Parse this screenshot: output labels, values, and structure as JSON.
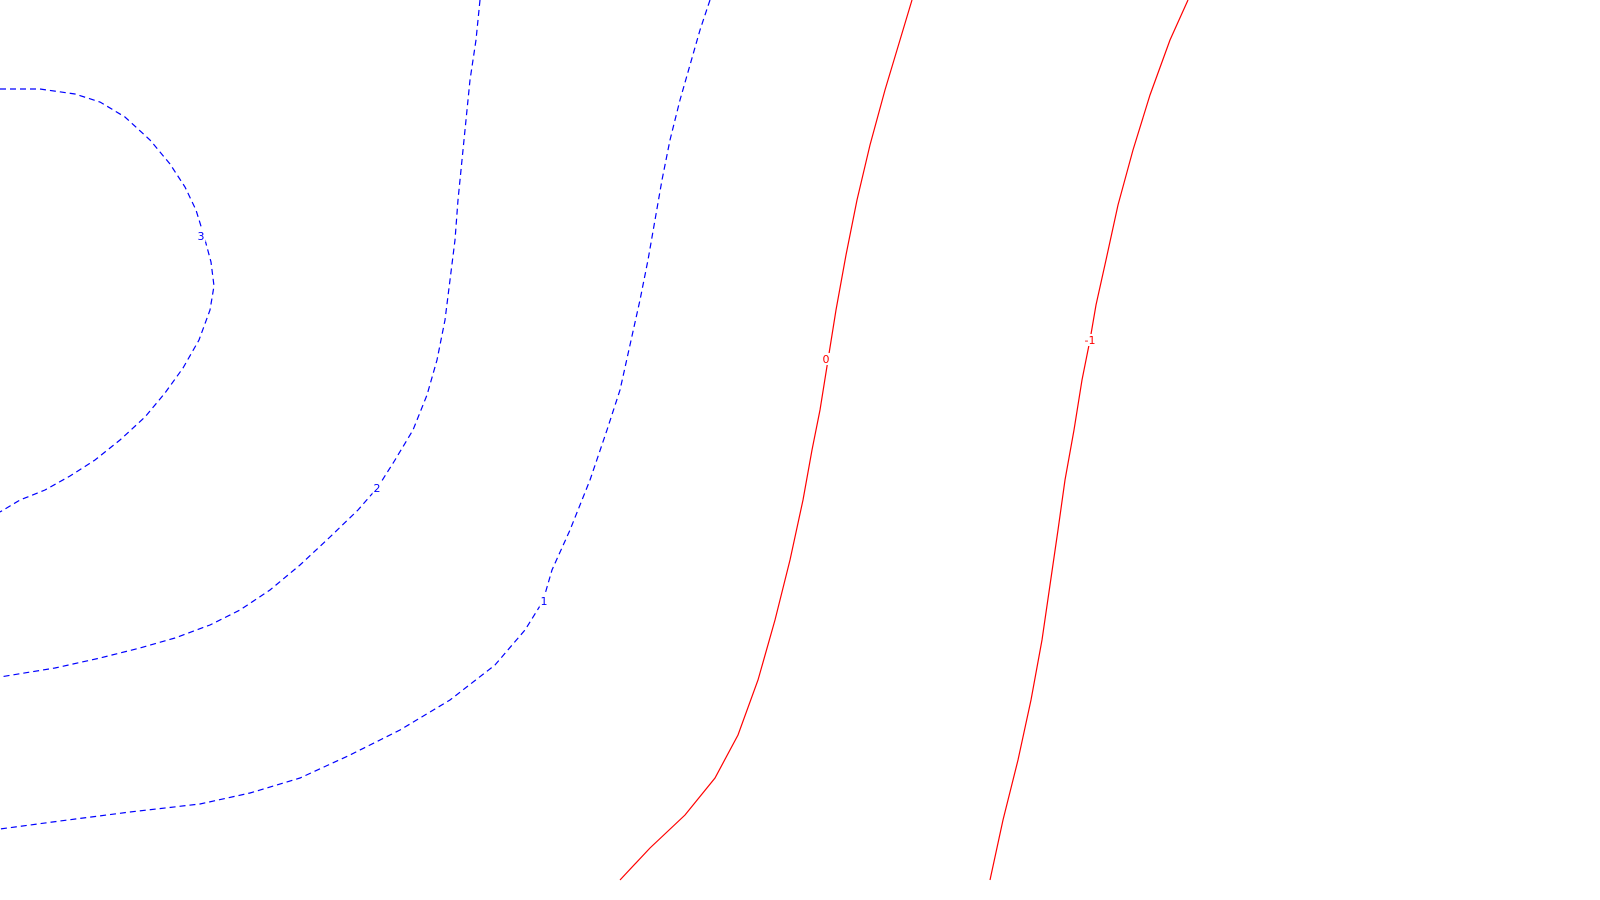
{
  "chart_data": {
    "type": "contour",
    "title": "",
    "xlabel": "",
    "ylabel": "",
    "grid": false,
    "colors": {
      "positive": "#0000ff",
      "zero": "#ff0000",
      "negative": "#ff0000",
      "background": "#ffffff"
    },
    "contours": [
      {
        "level": 3,
        "label": "3",
        "style": "dashed",
        "points": [
          [
            0,
            89
          ],
          [
            40,
            89
          ],
          [
            75,
            94
          ],
          [
            100,
            102
          ],
          [
            125,
            117
          ],
          [
            150,
            140
          ],
          [
            170,
            164
          ],
          [
            185,
            187
          ],
          [
            196,
            210
          ],
          [
            204,
            236
          ],
          [
            211,
            262
          ],
          [
            214,
            286
          ],
          [
            210,
            310
          ],
          [
            199,
            340
          ],
          [
            183,
            368
          ],
          [
            165,
            393
          ],
          [
            145,
            417
          ],
          [
            120,
            440
          ],
          [
            95,
            460
          ],
          [
            70,
            476
          ],
          [
            45,
            490
          ],
          [
            20,
            500
          ],
          [
            0,
            512
          ]
        ],
        "label_at": [
          201,
          236
        ]
      },
      {
        "level": 2,
        "label": "2",
        "style": "dashed",
        "points": [
          [
            480,
            0
          ],
          [
            476,
            40
          ],
          [
            470,
            80
          ],
          [
            466,
            120
          ],
          [
            462,
            160
          ],
          [
            458,
            200
          ],
          [
            455,
            240
          ],
          [
            450,
            280
          ],
          [
            445,
            320
          ],
          [
            437,
            360
          ],
          [
            427,
            395
          ],
          [
            413,
            430
          ],
          [
            395,
            460
          ],
          [
            378,
            487
          ],
          [
            358,
            510
          ],
          [
            330,
            537
          ],
          [
            300,
            565
          ],
          [
            270,
            590
          ],
          [
            240,
            610
          ],
          [
            210,
            625
          ],
          [
            175,
            638
          ],
          [
            140,
            648
          ],
          [
            100,
            658
          ],
          [
            55,
            668
          ],
          [
            0,
            677
          ]
        ],
        "label_at": [
          377,
          488
        ]
      },
      {
        "level": 1,
        "label": "1",
        "style": "dashed",
        "points": [
          [
            710,
            0
          ],
          [
            700,
            30
          ],
          [
            690,
            65
          ],
          [
            680,
            100
          ],
          [
            670,
            140
          ],
          [
            662,
            180
          ],
          [
            655,
            220
          ],
          [
            648,
            260
          ],
          [
            640,
            300
          ],
          [
            630,
            345
          ],
          [
            620,
            390
          ],
          [
            607,
            430
          ],
          [
            590,
            480
          ],
          [
            570,
            530
          ],
          [
            552,
            570
          ],
          [
            543,
            601
          ],
          [
            525,
            630
          ],
          [
            495,
            665
          ],
          [
            450,
            700
          ],
          [
            400,
            730
          ],
          [
            350,
            755
          ],
          [
            300,
            778
          ],
          [
            250,
            793
          ],
          [
            200,
            804
          ],
          [
            130,
            812
          ],
          [
            60,
            821
          ],
          [
            0,
            829
          ]
        ],
        "label_at": [
          544,
          601
        ]
      },
      {
        "level": 0,
        "label": "0",
        "style": "solid",
        "points": [
          [
            912,
            0
          ],
          [
            900,
            40
          ],
          [
            885,
            90
          ],
          [
            870,
            145
          ],
          [
            857,
            200
          ],
          [
            846,
            255
          ],
          [
            836,
            310
          ],
          [
            828,
            360
          ],
          [
            820,
            410
          ],
          [
            812,
            450
          ],
          [
            803,
            500
          ],
          [
            790,
            560
          ],
          [
            775,
            620
          ],
          [
            758,
            680
          ],
          [
            738,
            735
          ],
          [
            715,
            778
          ],
          [
            685,
            815
          ],
          [
            650,
            848
          ],
          [
            620,
            880
          ]
        ],
        "label_at": [
          826,
          359
        ]
      },
      {
        "level": -1,
        "label": "-1",
        "style": "solid",
        "points": [
          [
            1188,
            0
          ],
          [
            1170,
            40
          ],
          [
            1150,
            95
          ],
          [
            1133,
            150
          ],
          [
            1118,
            205
          ],
          [
            1106,
            260
          ],
          [
            1096,
            305
          ],
          [
            1090,
            340
          ],
          [
            1082,
            380
          ],
          [
            1074,
            430
          ],
          [
            1065,
            480
          ],
          [
            1058,
            530
          ],
          [
            1050,
            585
          ],
          [
            1042,
            640
          ],
          [
            1031,
            700
          ],
          [
            1018,
            760
          ],
          [
            1003,
            820
          ],
          [
            990,
            880
          ]
        ],
        "label_at": [
          1090,
          340
        ]
      }
    ]
  }
}
